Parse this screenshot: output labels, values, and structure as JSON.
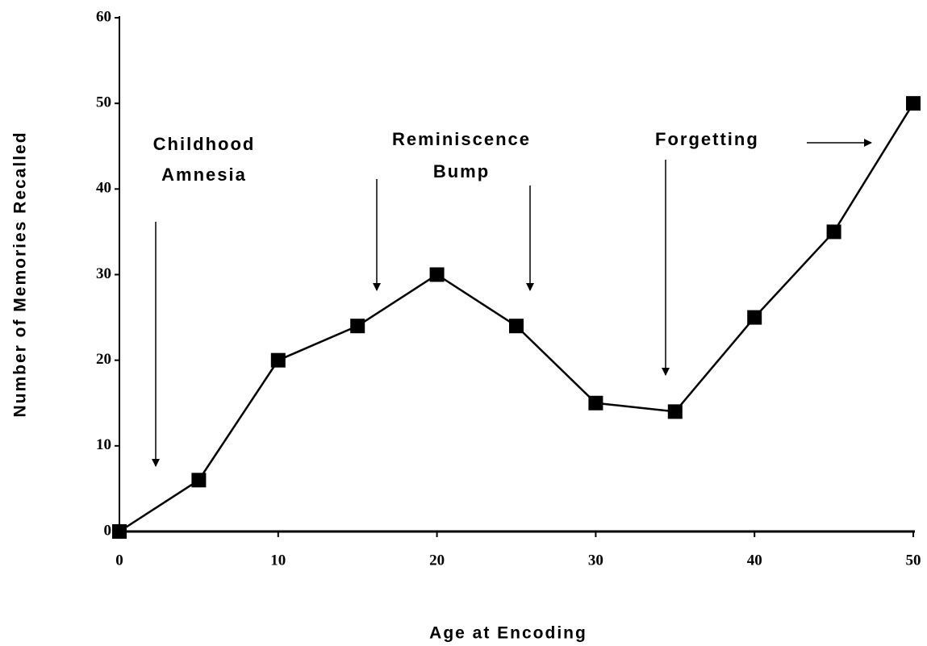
{
  "chart_data": {
    "type": "line",
    "x_label": "Age at Encoding",
    "y_label": "Number of Memories Recalled",
    "x": [
      0,
      5,
      10,
      15,
      20,
      25,
      30,
      35,
      40,
      45,
      50
    ],
    "series": [
      {
        "color": "#000000",
        "values": [
          0,
          6,
          20,
          24,
          30,
          24,
          15,
          14,
          25,
          35,
          50
        ]
      }
    ],
    "xlim": [
      0,
      50
    ],
    "xticks": [
      0,
      10,
      20,
      30,
      40,
      50
    ],
    "ylim": [
      0,
      60
    ],
    "yticks": [
      0,
      10,
      20,
      30,
      40,
      50,
      60
    ],
    "grid": false,
    "annotations": [
      {
        "lines": [
          "Childhood",
          "Amnesia"
        ]
      },
      {
        "lines": [
          "Reminiscence",
          "Bump"
        ]
      },
      {
        "lines": [
          "Forgetting"
        ]
      }
    ]
  }
}
